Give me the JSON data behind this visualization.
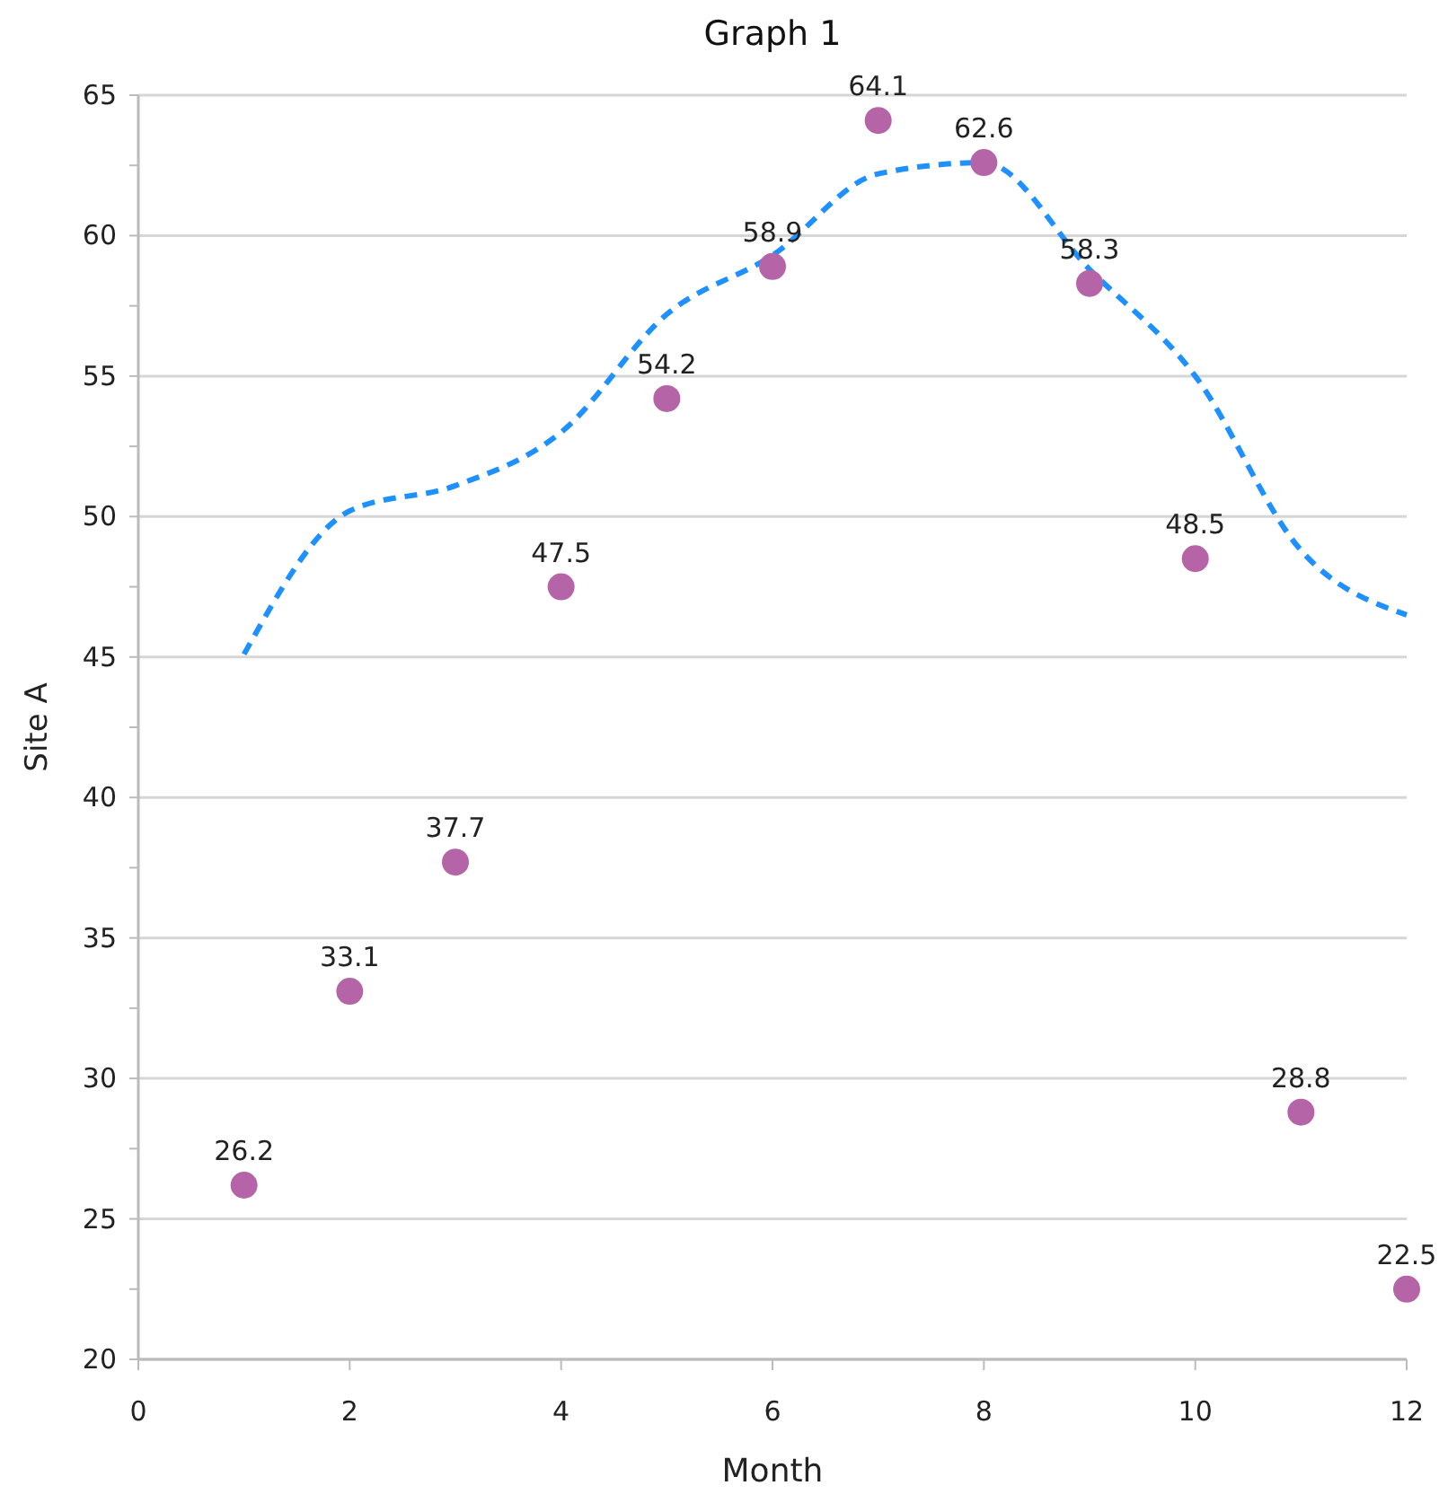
{
  "chart_data": {
    "type": "scatter",
    "title": "Graph 1",
    "xlabel": "Month",
    "ylabel": "Site A",
    "xlim": [
      0,
      12
    ],
    "xticks": [
      0,
      2,
      4,
      6,
      8,
      10,
      12
    ],
    "ylim": [
      20,
      65
    ],
    "yticks": [
      20,
      {
        "value": 22.5,
        "label": null
      },
      25,
      {
        "value": 27.5,
        "label": null
      },
      30,
      {
        "value": 32.5,
        "label": null
      },
      35,
      {
        "value": 37.5,
        "label": null
      },
      40,
      {
        "value": 42.5,
        "label": null
      },
      45,
      {
        "value": 47.5,
        "label": null
      },
      50,
      {
        "value": 52.5,
        "label": null
      },
      55,
      {
        "value": 57.5,
        "label": null
      },
      60,
      {
        "value": 62.5,
        "label": null
      },
      65
    ],
    "grid": "y",
    "series": [
      {
        "color": "#b565a7",
        "marker": "circle",
        "x": [
          1,
          2,
          3,
          4,
          5,
          6,
          7,
          8,
          9,
          10,
          11,
          12
        ],
        "values": [
          26.2,
          33.1,
          37.7,
          47.5,
          54.2,
          58.9,
          64.1,
          62.6,
          58.3,
          48.5,
          28.8,
          22.5
        ],
        "value_labels": [
          "26.2",
          "33.1",
          "37.7",
          "47.5",
          "54.2",
          "58.9",
          "64.1",
          "62.6",
          "58.3",
          "48.5",
          "28.8",
          "22.5"
        ]
      },
      {
        "type": "line",
        "color": "#1e90ff",
        "line_style": "dashed",
        "x": [
          1,
          2,
          3,
          4,
          5,
          6,
          7,
          8,
          9,
          10,
          11,
          12
        ],
        "values": [
          45.1,
          50.2,
          51.1,
          53.0,
          57.2,
          59.3,
          62.2,
          62.6,
          58.8,
          55.0,
          48.8,
          46.5
        ]
      }
    ]
  }
}
